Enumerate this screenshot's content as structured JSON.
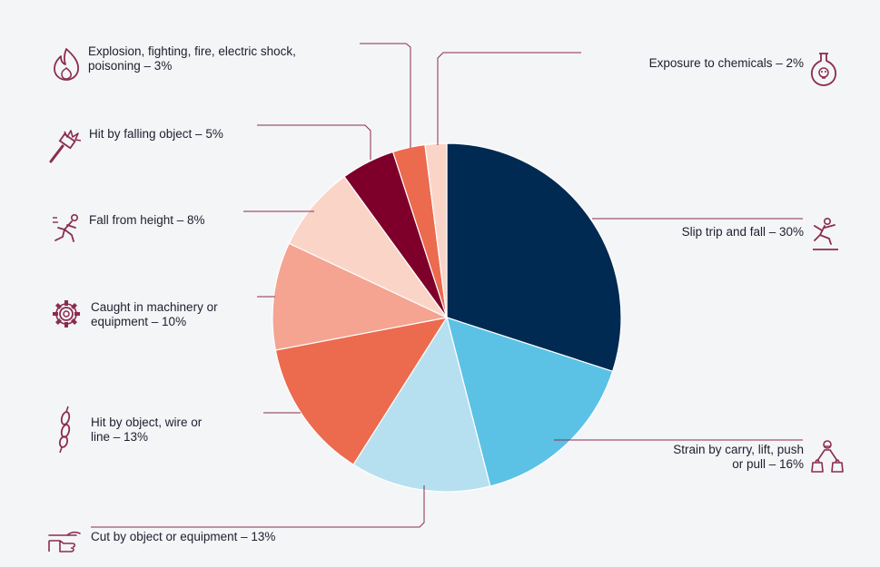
{
  "chart_data": {
    "type": "pie",
    "title": "",
    "start_angle_deg": 0,
    "direction": "clockwise",
    "slices": [
      {
        "name": "Slip trip and fall",
        "value": 30,
        "color": "#002a52",
        "label_line1": "Slip trip and fall – 30%",
        "label_line2": "",
        "icon": "slip-fall-icon"
      },
      {
        "name": "Strain by carry, lift, push or pull",
        "value": 16,
        "color": "#5bc2e5",
        "label_line1": "Strain by carry, lift, push",
        "label_line2": "or pull – 16%",
        "icon": "lifting-person-icon"
      },
      {
        "name": "Cut by object or equipment",
        "value": 13,
        "color": "#b6e0f0",
        "label_line1": "Cut by object or equipment – 13%",
        "label_line2": "",
        "icon": "cut-hand-icon"
      },
      {
        "name": "Hit by object, wire or line",
        "value": 13,
        "color": "#ec6a4e",
        "label_line1": "Hit by object, wire or",
        "label_line2": "line – 13%",
        "icon": "chain-icon"
      },
      {
        "name": "Caught in machinery or equipment",
        "value": 10,
        "color": "#f4a491",
        "label_line1": "Caught in machinery or",
        "label_line2": "equipment – 10%",
        "icon": "gear-icon"
      },
      {
        "name": "Fall from height",
        "value": 8,
        "color": "#fbd4c8",
        "label_line1": "Fall from height – 8%",
        "label_line2": "",
        "icon": "falling-person-icon"
      },
      {
        "name": "Hit by falling object",
        "value": 5,
        "color": "#7e002a",
        "label_line1": "Hit by falling object – 5%",
        "label_line2": "",
        "icon": "hammer-impact-icon"
      },
      {
        "name": "Explosion, fighting, fire, electric shock, poisoning",
        "value": 3,
        "color": "#ec6a4e",
        "label_line1": "Explosion, fighting, fire, electric shock,",
        "label_line2": "poisoning – 3%",
        "icon": "fire-icon"
      },
      {
        "name": "Exposure to chemicals",
        "value": 2,
        "color": "#fbd4c8",
        "label_line1": "Exposure to chemicals – 2%",
        "label_line2": "",
        "icon": "chemical-flask-icon"
      }
    ],
    "legend": "none",
    "colors": {
      "leader_line": "#8b2c4e",
      "icon": "#8b2c4e",
      "label_text": "#1e1e2e",
      "background": "#f4f5f7"
    }
  }
}
